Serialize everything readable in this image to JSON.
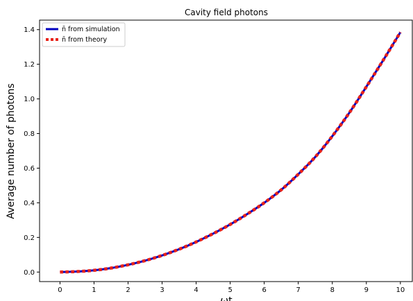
{
  "chart_data": {
    "type": "line",
    "title": "Cavity field photons",
    "xlabel": "ωt",
    "ylabel": "Average number of photons",
    "xlim": [
      -0.6,
      10.35
    ],
    "ylim": [
      -0.055,
      1.455
    ],
    "xticks": [
      0,
      1,
      2,
      3,
      4,
      5,
      6,
      7,
      8,
      9,
      10
    ],
    "xtick_labels": [
      "0",
      "1",
      "2",
      "3",
      "4",
      "5",
      "6",
      "7",
      "8",
      "9",
      "10"
    ],
    "yticks": [
      0.0,
      0.2,
      0.4,
      0.6,
      0.8,
      1.0,
      1.2,
      1.4
    ],
    "ytick_labels": [
      "0.0",
      "0.2",
      "0.4",
      "0.6",
      "0.8",
      "1.0",
      "1.2",
      "1.4"
    ],
    "grid": false,
    "legend_position": "upper-left",
    "series": [
      {
        "name": "n̄ from simulation",
        "style": "solid",
        "color": "#0000bf",
        "x": [
          0,
          0.5,
          1,
          1.5,
          2,
          2.5,
          3,
          3.5,
          4,
          4.5,
          5,
          5.5,
          6,
          6.5,
          7,
          7.5,
          8,
          8.5,
          9,
          9.5,
          10
        ],
        "values": [
          0.0,
          0.003,
          0.01,
          0.023,
          0.042,
          0.066,
          0.096,
          0.132,
          0.174,
          0.222,
          0.275,
          0.335,
          0.4,
          0.475,
          0.565,
          0.665,
          0.785,
          0.92,
          1.07,
          1.225,
          1.385
        ]
      },
      {
        "name": "n̄ from theory",
        "style": "dotted",
        "color": "#e8231a",
        "x": [
          0,
          0.5,
          1,
          1.5,
          2,
          2.5,
          3,
          3.5,
          4,
          4.5,
          5,
          5.5,
          6,
          6.5,
          7,
          7.5,
          8,
          8.5,
          9,
          9.5,
          10
        ],
        "values": [
          0.0,
          0.003,
          0.01,
          0.023,
          0.042,
          0.066,
          0.096,
          0.132,
          0.174,
          0.222,
          0.275,
          0.335,
          0.4,
          0.475,
          0.565,
          0.665,
          0.785,
          0.92,
          1.07,
          1.225,
          1.385
        ]
      }
    ]
  }
}
